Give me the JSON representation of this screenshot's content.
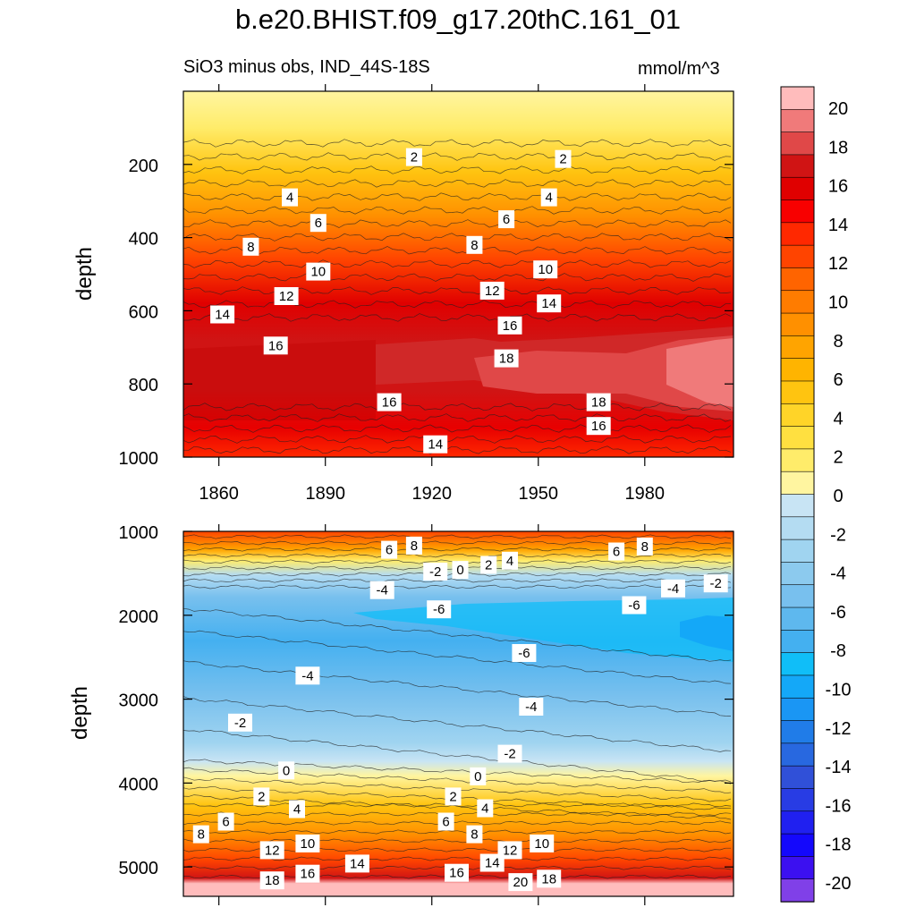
{
  "title": "b.e20.BHIST.f09_g17.20thC.161_01",
  "subtitle_left": "SiO3 minus obs, IND_44S-18S",
  "subtitle_right": "mmol/m^3",
  "chart_data": [
    {
      "type": "heatmap",
      "panel": "upper",
      "ylabel": "depth",
      "xlabel": "",
      "xlim": [
        1850,
        2005
      ],
      "ylim": [
        1000,
        0
      ],
      "xticks": [
        "1860",
        "1890",
        "1920",
        "1950",
        "1980"
      ],
      "yticks": [
        "200",
        "400",
        "600",
        "800",
        "1000"
      ],
      "contour_labels": [
        {
          "x": 1915,
          "y": 180,
          "text": "2"
        },
        {
          "x": 1957,
          "y": 185,
          "text": "2"
        },
        {
          "x": 1880,
          "y": 290,
          "text": "4"
        },
        {
          "x": 1953,
          "y": 290,
          "text": "4"
        },
        {
          "x": 1888,
          "y": 360,
          "text": "6"
        },
        {
          "x": 1941,
          "y": 350,
          "text": "6"
        },
        {
          "x": 1869,
          "y": 425,
          "text": "8"
        },
        {
          "x": 1932,
          "y": 420,
          "text": "8"
        },
        {
          "x": 1888,
          "y": 493,
          "text": "10"
        },
        {
          "x": 1952,
          "y": 487,
          "text": "10"
        },
        {
          "x": 1879,
          "y": 560,
          "text": "12"
        },
        {
          "x": 1937,
          "y": 545,
          "text": "12"
        },
        {
          "x": 1861,
          "y": 610,
          "text": "14"
        },
        {
          "x": 1953,
          "y": 580,
          "text": "14"
        },
        {
          "x": 1876,
          "y": 695,
          "text": "16"
        },
        {
          "x": 1942,
          "y": 640,
          "text": "16"
        },
        {
          "x": 1941,
          "y": 730,
          "text": "18"
        },
        {
          "x": 1908,
          "y": 850,
          "text": "16"
        },
        {
          "x": 1967,
          "y": 850,
          "text": "18"
        },
        {
          "x": 1967,
          "y": 915,
          "text": "16"
        },
        {
          "x": 1921,
          "y": 965,
          "text": "14"
        }
      ]
    },
    {
      "type": "heatmap",
      "panel": "lower",
      "ylabel": "depth",
      "xlabel": "",
      "xlim": [
        1850,
        2005
      ],
      "ylim": [
        5350,
        1000
      ],
      "xticks": [],
      "yticks": [
        "1000",
        "2000",
        "3000",
        "4000",
        "5000"
      ],
      "contour_labels": [
        {
          "x": 1908,
          "y": 1220,
          "text": "6"
        },
        {
          "x": 1915,
          "y": 1170,
          "text": "8"
        },
        {
          "x": 1972,
          "y": 1240,
          "text": "6"
        },
        {
          "x": 1980,
          "y": 1180,
          "text": "8"
        },
        {
          "x": 1921,
          "y": 1480,
          "text": "-2"
        },
        {
          "x": 1928,
          "y": 1460,
          "text": "0"
        },
        {
          "x": 1936,
          "y": 1400,
          "text": "2"
        },
        {
          "x": 1942,
          "y": 1350,
          "text": "4"
        },
        {
          "x": 1906,
          "y": 1700,
          "text": "-4"
        },
        {
          "x": 1922,
          "y": 1930,
          "text": "-6"
        },
        {
          "x": 1977,
          "y": 1880,
          "text": "-6"
        },
        {
          "x": 1988,
          "y": 1680,
          "text": "-4"
        },
        {
          "x": 2000,
          "y": 1620,
          "text": "-2"
        },
        {
          "x": 1946,
          "y": 2450,
          "text": "-6"
        },
        {
          "x": 1885,
          "y": 2720,
          "text": "-4"
        },
        {
          "x": 1948,
          "y": 3090,
          "text": "-4"
        },
        {
          "x": 1866,
          "y": 3280,
          "text": "-2"
        },
        {
          "x": 1942,
          "y": 3650,
          "text": "-2"
        },
        {
          "x": 1879,
          "y": 3850,
          "text": "0"
        },
        {
          "x": 1933,
          "y": 3920,
          "text": "0"
        },
        {
          "x": 1872,
          "y": 4160,
          "text": "2"
        },
        {
          "x": 1926,
          "y": 4160,
          "text": "2"
        },
        {
          "x": 1882,
          "y": 4310,
          "text": "4"
        },
        {
          "x": 1935,
          "y": 4300,
          "text": "4"
        },
        {
          "x": 1862,
          "y": 4460,
          "text": "6"
        },
        {
          "x": 1924,
          "y": 4460,
          "text": "6"
        },
        {
          "x": 1855,
          "y": 4610,
          "text": "8"
        },
        {
          "x": 1932,
          "y": 4610,
          "text": "8"
        },
        {
          "x": 1875,
          "y": 4800,
          "text": "12"
        },
        {
          "x": 1885,
          "y": 4720,
          "text": "10"
        },
        {
          "x": 1942,
          "y": 4800,
          "text": "12"
        },
        {
          "x": 1951,
          "y": 4720,
          "text": "10"
        },
        {
          "x": 1899,
          "y": 4960,
          "text": "14"
        },
        {
          "x": 1937,
          "y": 4950,
          "text": "14"
        },
        {
          "x": 1885,
          "y": 5080,
          "text": "16"
        },
        {
          "x": 1927,
          "y": 5070,
          "text": "16"
        },
        {
          "x": 1875,
          "y": 5160,
          "text": "18"
        },
        {
          "x": 1945,
          "y": 5180,
          "text": "20"
        },
        {
          "x": 1953,
          "y": 5140,
          "text": "18"
        }
      ]
    }
  ],
  "colorbar": {
    "labels": [
      "20",
      "18",
      "16",
      "14",
      "12",
      "10",
      "8",
      "6",
      "4",
      "2",
      "0",
      "-2",
      "-4",
      "-6",
      "-8",
      "-10",
      "-12",
      "-14",
      "-16",
      "-18",
      "-20"
    ],
    "colors": [
      "#FFBCBC",
      "#F07A7A",
      "#E04848",
      "#D01414",
      "#E00000",
      "#F80000",
      "#FF2800",
      "#FF4400",
      "#FF6400",
      "#FF7C00",
      "#FF9000",
      "#FFA400",
      "#FFB400",
      "#FFC410",
      "#FFD428",
      "#FFE040",
      "#FFEC6A",
      "#FFF5A0",
      "#C8E4F4",
      "#B4DCF2",
      "#A0D4F0",
      "#8CCAEE",
      "#78C0EE",
      "#5EB8EE",
      "#44B0F0",
      "#10BEF8",
      "#14A8F8",
      "#1A96F4",
      "#207CE8",
      "#2868E0",
      "#3050D8",
      "#283CE4",
      "#2020F0",
      "#1408FC",
      "#3C10F0",
      "#8040E8"
    ]
  }
}
